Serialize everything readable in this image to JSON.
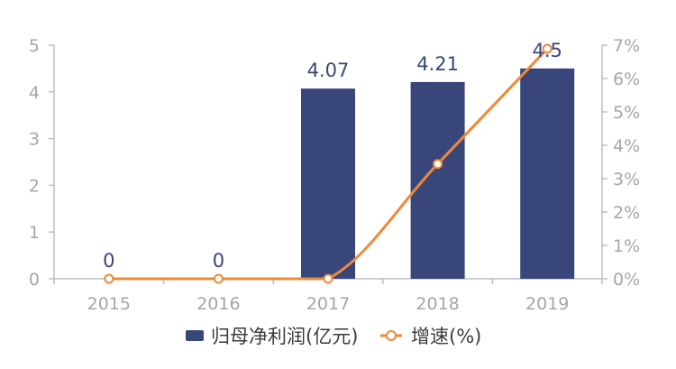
{
  "colors": {
    "bar": "#38467a",
    "line": "#f0883a",
    "axis": "#bfbfbf",
    "tick_text": "#a6a6a6",
    "label_text": "#3a4675"
  },
  "chart_data": {
    "type": "bar",
    "categories": [
      "2015",
      "2016",
      "2017",
      "2018",
      "2019"
    ],
    "series": [
      {
        "name": "归母净利润(亿元)",
        "type": "bar",
        "axis": "left",
        "values": [
          0,
          0,
          4.07,
          4.21,
          4.5
        ],
        "labels": [
          "0",
          "0",
          "4.07",
          "4.21",
          "4.5"
        ]
      },
      {
        "name": "增速(%)",
        "type": "line",
        "axis": "right",
        "values": [
          0,
          0,
          0,
          3.44,
          6.89
        ]
      }
    ],
    "ylim": [
      0,
      5
    ],
    "yticks": [
      "0",
      "1",
      "2",
      "3",
      "4",
      "5"
    ],
    "y2lim": [
      0,
      7
    ],
    "y2ticks": [
      "0%",
      "1%",
      "2%",
      "3%",
      "4%",
      "5%",
      "6%",
      "7%"
    ],
    "grid": false,
    "legend": "bottom"
  }
}
